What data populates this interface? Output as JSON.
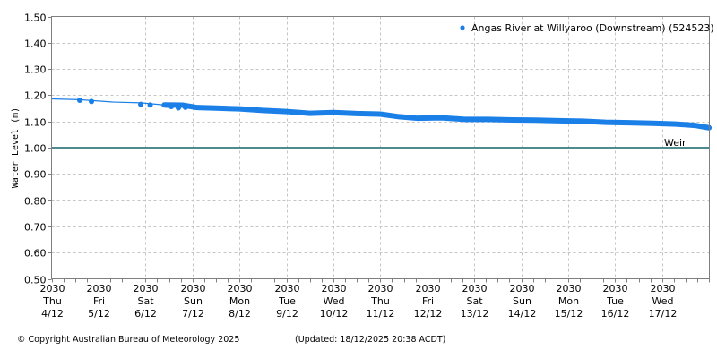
{
  "chart_data": {
    "type": "line",
    "title": "",
    "xlabel": "",
    "ylabel": "Water Level (m)",
    "ylim": [
      0.5,
      1.5
    ],
    "yticks": [
      "0.50",
      "0.60",
      "0.70",
      "0.80",
      "0.90",
      "1.00",
      "1.10",
      "1.20",
      "1.30",
      "1.40",
      "1.50"
    ],
    "grid": true,
    "legend_position": "top-right",
    "x_tick_labels": [
      {
        "year": "2030",
        "day": "Thu",
        "date": "4/12"
      },
      {
        "year": "2030",
        "day": "Fri",
        "date": "5/12"
      },
      {
        "year": "2030",
        "day": "Sat",
        "date": "6/12"
      },
      {
        "year": "2030",
        "day": "Sun",
        "date": "7/12"
      },
      {
        "year": "2030",
        "day": "Mon",
        "date": "8/12"
      },
      {
        "year": "2030",
        "day": "Tue",
        "date": "9/12"
      },
      {
        "year": "2030",
        "day": "Wed",
        "date": "10/12"
      },
      {
        "year": "2030",
        "day": "Thu",
        "date": "11/12"
      },
      {
        "year": "2030",
        "day": "Fri",
        "date": "12/12"
      },
      {
        "year": "2030",
        "day": "Sat",
        "date": "13/12"
      },
      {
        "year": "2030",
        "day": "Sun",
        "date": "14/12"
      },
      {
        "year": "2030",
        "day": "Mon",
        "date": "15/12"
      },
      {
        "year": "2030",
        "day": "Tue",
        "date": "16/12"
      },
      {
        "year": "2030",
        "day": "Wed",
        "date": "17/12"
      }
    ],
    "series": [
      {
        "name": "Angas River at Willyaroo (Downstream) (524523)",
        "color": "#1a7fe6",
        "x_days_from_start": [
          0,
          0.6,
          1.0,
          1.3,
          1.9,
          2.4,
          2.8,
          3.1,
          3.5,
          4.0,
          4.5,
          5.0,
          5.5,
          6.0,
          6.5,
          7.0,
          7.4,
          7.8,
          8.3,
          8.8,
          9.3,
          9.8,
          10.3,
          10.8,
          11.3,
          11.8,
          12.3,
          12.8,
          13.3,
          13.7,
          14.0
        ],
        "values": [
          1.186,
          1.183,
          1.178,
          1.174,
          1.171,
          1.163,
          1.162,
          1.153,
          1.151,
          1.148,
          1.142,
          1.138,
          1.131,
          1.134,
          1.13,
          1.128,
          1.118,
          1.112,
          1.114,
          1.108,
          1.108,
          1.106,
          1.105,
          1.103,
          1.101,
          1.097,
          1.095,
          1.093,
          1.09,
          1.085,
          1.076
        ]
      },
      {
        "name": "Weir",
        "color": "#4f8a91",
        "type": "reference-line",
        "value": 1.0
      }
    ],
    "annotations": [
      {
        "text": "Weir",
        "y": 1.0
      }
    ]
  },
  "legend": {
    "label": "Angas River at Willyaroo (Downstream) (524523)"
  },
  "weir_label": "Weir",
  "footer": {
    "copyright": "© Copyright Australian Bureau of Meteorology 2025",
    "updated": "(Updated: 18/12/2025 20:38 ACDT)"
  }
}
